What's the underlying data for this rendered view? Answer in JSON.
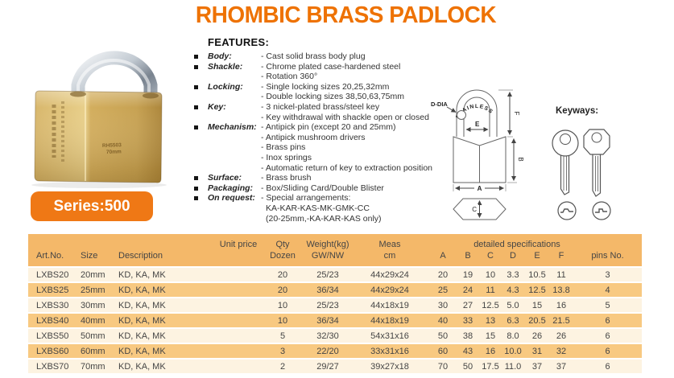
{
  "title": "RHOMBIC BRASS PADLOCK",
  "series_badge": "Series:500",
  "padlock": {
    "engraving_line1": "RH5503",
    "engraving_line2": "70mm"
  },
  "features": {
    "heading": "FEATURES:",
    "items": [
      {
        "bullet": true,
        "label": "Body:",
        "text": "- Cast solid brass body plug"
      },
      {
        "bullet": true,
        "label": "Shackle:",
        "text": "- Chrome plated case-hardened steel"
      },
      {
        "bullet": false,
        "label": "",
        "text": "- Rotation 360°"
      },
      {
        "bullet": true,
        "label": "Locking:",
        "text": "- Single locking sizes 20,25,32mm"
      },
      {
        "bullet": false,
        "label": "",
        "text": "- Double locking sizes 38,50,63,75mm"
      },
      {
        "bullet": true,
        "label": "Key:",
        "text": "- 3 nickel-plated brass/steel key"
      },
      {
        "bullet": false,
        "label": "",
        "text": "- Key withdrawal with shackle open or closed"
      },
      {
        "bullet": true,
        "label": "Mechanism:",
        "text": "- Antipick pin (except 20 and 25mm)"
      },
      {
        "bullet": false,
        "label": "",
        "text": "- Antipick mushroom drivers"
      },
      {
        "bullet": false,
        "label": "",
        "text": "- Brass pins"
      },
      {
        "bullet": false,
        "label": "",
        "text": "- Inox springs"
      },
      {
        "bullet": false,
        "label": "",
        "text": "- Automatic return of key to extraction position"
      },
      {
        "bullet": true,
        "label": "Surface:",
        "text": "- Brass brush"
      },
      {
        "bullet": true,
        "label": "Packaging:",
        "text": "- Box/Sliding Card/Double Blister"
      },
      {
        "bullet": true,
        "label": "On request:",
        "text": "- Special arrangements:"
      },
      {
        "bullet": false,
        "label": "",
        "indent": true,
        "text": "KA-KAR-KAS-MK-GMK-CC"
      },
      {
        "bullet": false,
        "label": "",
        "indent": true,
        "text": "(20-25mm,-KA-KAR-KAS only)"
      }
    ]
  },
  "diagram": {
    "labels": {
      "stainless": "STAINLESS",
      "d_dia": "D-DIA",
      "a": "A",
      "b": "B",
      "c": "C",
      "e": "E",
      "f": "F"
    }
  },
  "keyways": {
    "label": "Keyways:"
  },
  "table": {
    "headers": {
      "art_no": "Art.No.",
      "size": "Size",
      "description": "Description",
      "unit_price": "Unit price",
      "qty_l1": "Qty",
      "qty_l2": "Dozen",
      "weight_l1": "Weight(kg)",
      "weight_l2": "GW/NW",
      "meas_l1": "Meas",
      "meas_l2": "cm",
      "detailed_specs": "detailed specifications",
      "pins_no": "pins No."
    },
    "spec_letters": [
      "A",
      "B",
      "C",
      "D",
      "E",
      "F"
    ],
    "rows": [
      [
        "LXBS20",
        "20mm",
        "KD, KA, MK",
        "",
        "20",
        "25/23",
        "44x29x24",
        "20",
        "19",
        "10",
        "3.3",
        "10.5",
        "11",
        "3"
      ],
      [
        "LXBS25",
        "25mm",
        "KD, KA, MK",
        "",
        "20",
        "36/34",
        "44x29x24",
        "25",
        "24",
        "11",
        "4.3",
        "12.5",
        "13.8",
        "4"
      ],
      [
        "LXBS30",
        "30mm",
        "KD, KA, MK",
        "",
        "10",
        "25/23",
        "44x18x19",
        "30",
        "27",
        "12.5",
        "5.0",
        "15",
        "16",
        "5"
      ],
      [
        "LXBS40",
        "40mm",
        "KD, KA, MK",
        "",
        "10",
        "36/34",
        "44x18x19",
        "40",
        "33",
        "13",
        "6.3",
        "20.5",
        "21.5",
        "6"
      ],
      [
        "LXBS50",
        "50mm",
        "KD, KA, MK",
        "",
        "5",
        "32/30",
        "54x31x16",
        "50",
        "38",
        "15",
        "8.0",
        "26",
        "26",
        "6"
      ],
      [
        "LXBS60",
        "60mm",
        "KD, KA, MK",
        "",
        "3",
        "22/20",
        "33x31x16",
        "60",
        "43",
        "16",
        "10.0",
        "31",
        "32",
        "6"
      ],
      [
        "LXBS70",
        "70mm",
        "KD, KA, MK",
        "",
        "2",
        "29/27",
        "39x27x18",
        "70",
        "50",
        "17.5",
        "11.0",
        "37",
        "37",
        "6"
      ]
    ]
  },
  "colors": {
    "accent": "#ee7203",
    "badge": "#ef7815",
    "table_header_bg": "#f4b869",
    "row_orange": "#f8c981",
    "row_cream": "#fdf3e1"
  }
}
